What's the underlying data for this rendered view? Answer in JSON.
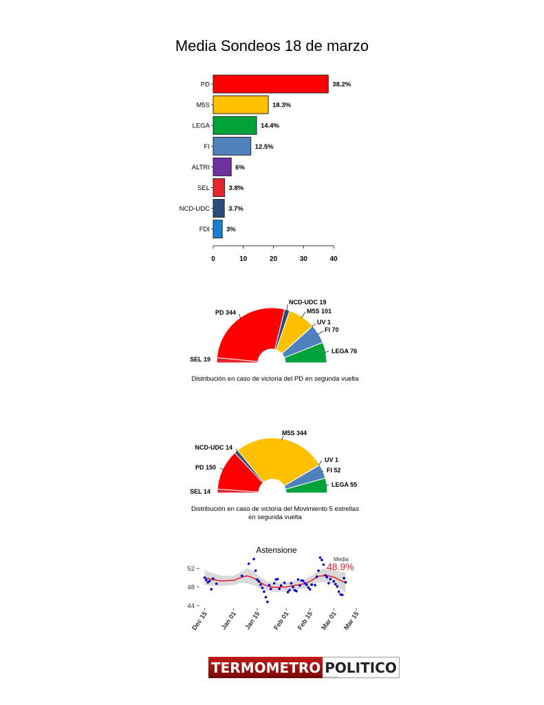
{
  "title": "Media Sondeos 18 de marzo",
  "colors": {
    "PD": "#ff0000",
    "M5S": "#ffc000",
    "LEGA": "#00a33a",
    "FI": "#4f81bd",
    "ALTRI": "#7030a0",
    "SEL": "#e8232e",
    "NCD-UDC": "#2a4b7c",
    "FDI": "#1a7fd4",
    "UV": "#2a4b7c"
  },
  "chart_data": [
    {
      "type": "bar",
      "orientation": "horizontal",
      "categories": [
        "PD",
        "M5S",
        "LEGA",
        "FI",
        "ALTRI",
        "SEL",
        "NCD-UDC",
        "FDI"
      ],
      "values": [
        38.2,
        18.3,
        14.4,
        12.5,
        6,
        3.8,
        3.7,
        3
      ],
      "value_labels": [
        "38.2%",
        "18.3%",
        "14.4%",
        "12.5%",
        "6%",
        "3.8%",
        "3.7%",
        "3%"
      ],
      "xticks": [
        0,
        10,
        20,
        30,
        40
      ],
      "xlim": [
        0,
        40
      ]
    },
    {
      "type": "pie",
      "subtype": "semicircle",
      "caption": "Distribución en caso de victoria del PD en segunda vuelta",
      "slices": [
        {
          "name": "SEL",
          "value": 19,
          "label": "SEL 19"
        },
        {
          "name": "PD",
          "value": 344,
          "label": "PD 344"
        },
        {
          "name": "NCD-UDC",
          "value": 19,
          "label": "NCD-UDC 19"
        },
        {
          "name": "M5S",
          "value": 101,
          "label": "M5S 101"
        },
        {
          "name": "UV",
          "value": 1,
          "label": "UV 1"
        },
        {
          "name": "FI",
          "value": 70,
          "label": "FI 70"
        },
        {
          "name": "LEGA",
          "value": 76,
          "label": "LEGA 76"
        }
      ]
    },
    {
      "type": "pie",
      "subtype": "semicircle",
      "caption_lines": [
        "Distribución en caso de victoria del Movimiento 5 estrellas",
        "en segunda vuelta"
      ],
      "slices": [
        {
          "name": "SEL",
          "value": 14,
          "label": "SEL 14"
        },
        {
          "name": "PD",
          "value": 150,
          "label": "PD 150"
        },
        {
          "name": "NCD-UDC",
          "value": 14,
          "label": "NCD-UDC 14"
        },
        {
          "name": "M5S",
          "value": 344,
          "label": "M5S 344"
        },
        {
          "name": "UV",
          "value": 1,
          "label": "UV 1"
        },
        {
          "name": "FI",
          "value": 52,
          "label": "FI 52"
        },
        {
          "name": "LEGA",
          "value": 55,
          "label": "LEGA 55"
        }
      ]
    },
    {
      "type": "scatter",
      "title": "Astensione",
      "xticks": [
        "Dec 15",
        "Jan 01",
        "Jan 15",
        "Feb 01",
        "Feb 15",
        "Mar 01",
        "Mar 15"
      ],
      "yticks": [
        44,
        48,
        52
      ],
      "ylim": [
        43.5,
        54
      ],
      "annotation_label": "Media",
      "annotation_value": "48.9%",
      "point_color": "#0000cc",
      "smooth_color": "#e8232e",
      "band_color": "#cccccc",
      "points": [
        [
          "2014-12-15",
          50.0
        ],
        [
          "2014-12-16",
          49.5
        ],
        [
          "2014-12-17",
          49.0
        ],
        [
          "2014-12-18",
          49.3
        ],
        [
          "2014-12-19",
          47.5
        ],
        [
          "2014-12-20",
          49.8
        ],
        [
          "2014-12-22",
          48.7
        ],
        [
          "2015-01-06",
          50.4
        ],
        [
          "2015-01-10",
          53.0
        ],
        [
          "2015-01-13",
          54.0
        ],
        [
          "2015-01-14",
          51.5
        ],
        [
          "2015-01-15",
          49.6
        ],
        [
          "2015-01-16",
          49.2
        ],
        [
          "2015-01-17",
          48.5
        ],
        [
          "2015-01-18",
          47.8
        ],
        [
          "2015-01-19",
          47.0
        ],
        [
          "2015-01-20",
          45.8
        ],
        [
          "2015-01-21",
          44.8
        ],
        [
          "2015-01-22",
          48.4
        ],
        [
          "2015-01-23",
          47.6
        ],
        [
          "2015-01-25",
          48.8
        ],
        [
          "2015-01-26",
          49.6
        ],
        [
          "2015-01-27",
          49.7
        ],
        [
          "2015-01-28",
          47.6
        ],
        [
          "2015-01-29",
          48.3
        ],
        [
          "2015-01-31",
          48.9
        ],
        [
          "2015-02-02",
          46.9
        ],
        [
          "2015-02-03",
          47.3
        ],
        [
          "2015-02-04",
          48.8
        ],
        [
          "2015-02-05",
          48.0
        ],
        [
          "2015-02-06",
          47.3
        ],
        [
          "2015-02-07",
          47.1
        ],
        [
          "2015-02-08",
          49.6
        ],
        [
          "2015-02-09",
          48.3
        ],
        [
          "2015-02-10",
          49.4
        ],
        [
          "2015-02-11",
          49.3
        ],
        [
          "2015-02-12",
          48.8
        ],
        [
          "2015-02-13",
          48.5
        ],
        [
          "2015-02-14",
          47.9
        ],
        [
          "2015-02-15",
          47.5
        ],
        [
          "2015-02-16",
          48.5
        ],
        [
          "2015-02-18",
          48.4
        ],
        [
          "2015-02-19",
          50.2
        ],
        [
          "2015-02-20",
          51.5
        ],
        [
          "2015-02-21",
          54.3
        ],
        [
          "2015-02-22",
          53.8
        ],
        [
          "2015-02-23",
          52.8
        ],
        [
          "2015-02-24",
          50.5
        ],
        [
          "2015-02-25",
          50.1
        ],
        [
          "2015-02-26",
          48.8
        ],
        [
          "2015-02-27",
          49.7
        ],
        [
          "2015-03-01",
          49.2
        ],
        [
          "2015-03-02",
          48.6
        ],
        [
          "2015-03-03",
          48.1
        ],
        [
          "2015-03-04",
          47.0
        ],
        [
          "2015-03-05",
          46.4
        ],
        [
          "2015-03-06",
          46.3
        ],
        [
          "2015-03-07",
          49.9
        ],
        [
          "2015-03-08",
          49.0
        ]
      ],
      "smooth": [
        [
          "2014-12-15",
          50.0
        ],
        [
          "2014-12-20",
          49.6
        ],
        [
          "2014-12-25",
          49.3
        ],
        [
          "2015-01-01",
          49.4
        ],
        [
          "2015-01-05",
          50.0
        ],
        [
          "2015-01-09",
          50.4
        ],
        [
          "2015-01-13",
          49.9
        ],
        [
          "2015-01-17",
          48.9
        ],
        [
          "2015-01-21",
          48.2
        ],
        [
          "2015-01-25",
          47.9
        ],
        [
          "2015-02-01",
          48.0
        ],
        [
          "2015-02-07",
          48.4
        ],
        [
          "2015-02-12",
          48.7
        ],
        [
          "2015-02-16",
          49.4
        ],
        [
          "2015-02-20",
          50.3
        ],
        [
          "2015-02-25",
          50.5
        ],
        [
          "2015-03-01",
          50.1
        ],
        [
          "2015-03-05",
          49.4
        ],
        [
          "2015-03-08",
          48.9
        ]
      ],
      "band_halfwidth": [
        1.6,
        1.3,
        1.1,
        1.0,
        1.1,
        1.6,
        1.5,
        1.2,
        1.0,
        1.0,
        1.0,
        1.0,
        1.0,
        1.1,
        1.3,
        1.5,
        1.6,
        1.9,
        2.3
      ]
    }
  ],
  "logo": {
    "left": "TERMOMETRO",
    "right": "POLITICO"
  }
}
